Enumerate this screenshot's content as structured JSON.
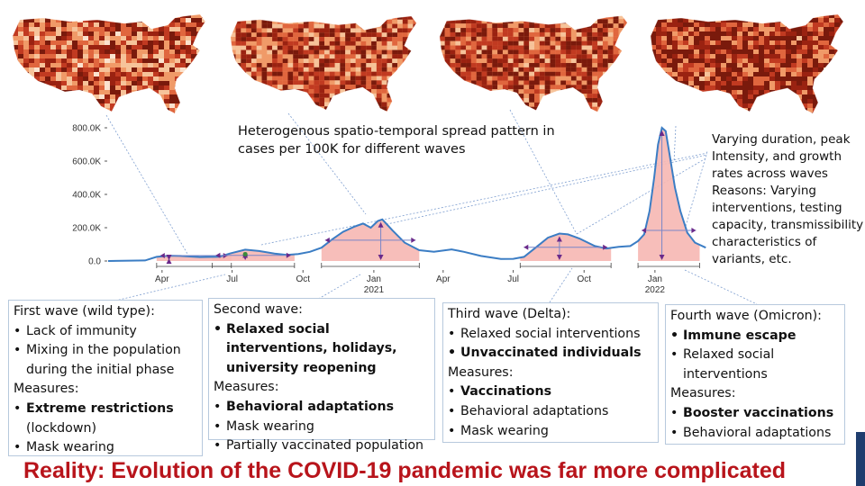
{
  "maps": [
    "wave-1-map",
    "wave-2-map",
    "wave-3-map",
    "wave-4-map"
  ],
  "heading": "Heterogenous spatio-temporal spread pattern in cases per 100K for different waves",
  "side_note": "Varying duration, peak Intensity, and growth rates across waves Reasons: Varying interventions, testing capacity, transmissibility characteristics of variants, etc.",
  "boxes": [
    {
      "title": "First wave (wild type):",
      "items": [
        {
          "text": "Lack of immunity",
          "bold": false
        },
        {
          "text": "Mixing in the population during the initial phase",
          "bold": false
        }
      ],
      "measures_label": "Measures:",
      "measures": [
        {
          "bold_text": "Extreme restrictions",
          "text": " (lockdown)"
        },
        {
          "bold_text": "",
          "text": "Mask wearing"
        }
      ]
    },
    {
      "title": "Second wave:",
      "items": [
        {
          "text": "Relaxed social interventions, holidays, university reopening",
          "bold": true
        }
      ],
      "measures_label": "Measures:",
      "measures": [
        {
          "bold_text": "Behavioral adaptations",
          "text": ""
        },
        {
          "bold_text": "",
          "text": "Mask wearing"
        },
        {
          "bold_text": "",
          "text": "Partially vaccinated population"
        }
      ]
    },
    {
      "title": "Third wave (Delta):",
      "items": [
        {
          "text": "Relaxed social interventions",
          "bold": false
        },
        {
          "text": "Unvaccinated individuals",
          "bold": true
        }
      ],
      "measures_label": "Measures:",
      "measures": [
        {
          "bold_text": "Vaccinations",
          "text": ""
        },
        {
          "bold_text": "",
          "text": "Behavioral adaptations"
        },
        {
          "bold_text": "",
          "text": "Mask wearing"
        }
      ]
    },
    {
      "title": "Fourth wave (Omicron):",
      "items": [
        {
          "text": "Immune escape",
          "bold": true
        },
        {
          "text": "Relaxed social interventions",
          "bold": false
        }
      ],
      "measures_label": "Measures:",
      "measures": [
        {
          "bold_text": "Booster vaccinations",
          "text": ""
        },
        {
          "bold_text": "",
          "text": "Behavioral adaptations"
        }
      ]
    }
  ],
  "footer": "Reality: Evolution of the COVID-19 pandemic was far more complicated",
  "colors": {
    "line": "#3b7dc4",
    "wave_fill": "#f6b7b3",
    "arrow": "#6b2a8a",
    "footer": "#b8141b",
    "map_dark": "#7a1a0c",
    "map_light": "#fbe3cf"
  },
  "chart_data": {
    "type": "line",
    "ylabel": "",
    "ylim": [
      0,
      850000
    ],
    "y_ticks": [
      {
        "value": 0,
        "label": "0.0"
      },
      {
        "value": 200000,
        "label": "200.0K"
      },
      {
        "value": 400000,
        "label": "400.0K"
      },
      {
        "value": 600000,
        "label": "600.0K"
      },
      {
        "value": 800000,
        "label": "800.0K"
      }
    ],
    "xlim": [
      "2020-01-22",
      "2022-03-10"
    ],
    "x_ticks": [
      {
        "date": "2020-04-01",
        "label": "Apr",
        "sub": ""
      },
      {
        "date": "2020-07-01",
        "label": "Jul",
        "sub": ""
      },
      {
        "date": "2020-10-01",
        "label": "Oct",
        "sub": ""
      },
      {
        "date": "2021-01-01",
        "label": "Jan",
        "sub": "2021"
      },
      {
        "date": "2021-04-01",
        "label": "Apr",
        "sub": ""
      },
      {
        "date": "2021-07-01",
        "label": "Jul",
        "sub": ""
      },
      {
        "date": "2021-10-01",
        "label": "Oct",
        "sub": ""
      },
      {
        "date": "2022-01-01",
        "label": "Jan",
        "sub": "2022"
      }
    ],
    "series": [
      {
        "name": "",
        "points": [
          [
            "2020-01-22",
            0
          ],
          [
            "2020-03-10",
            3000
          ],
          [
            "2020-03-25",
            25000
          ],
          [
            "2020-04-10",
            32000
          ],
          [
            "2020-04-25",
            30000
          ],
          [
            "2020-05-20",
            24000
          ],
          [
            "2020-06-15",
            26000
          ],
          [
            "2020-06-28",
            45000
          ],
          [
            "2020-07-18",
            68000
          ],
          [
            "2020-08-05",
            60000
          ],
          [
            "2020-08-25",
            45000
          ],
          [
            "2020-09-10",
            37000
          ],
          [
            "2020-09-25",
            42000
          ],
          [
            "2020-10-10",
            55000
          ],
          [
            "2020-10-25",
            80000
          ],
          [
            "2020-11-08",
            130000
          ],
          [
            "2020-11-22",
            175000
          ],
          [
            "2020-12-06",
            205000
          ],
          [
            "2020-12-18",
            225000
          ],
          [
            "2020-12-28",
            200000
          ],
          [
            "2021-01-06",
            240000
          ],
          [
            "2021-01-12",
            250000
          ],
          [
            "2021-01-25",
            185000
          ],
          [
            "2021-02-10",
            110000
          ],
          [
            "2021-03-01",
            65000
          ],
          [
            "2021-03-20",
            55000
          ],
          [
            "2021-04-12",
            70000
          ],
          [
            "2021-04-28",
            55000
          ],
          [
            "2021-05-20",
            30000
          ],
          [
            "2021-06-15",
            12000
          ],
          [
            "2021-07-01",
            13000
          ],
          [
            "2021-07-15",
            25000
          ],
          [
            "2021-07-30",
            80000
          ],
          [
            "2021-08-15",
            140000
          ],
          [
            "2021-08-30",
            165000
          ],
          [
            "2021-09-10",
            160000
          ],
          [
            "2021-09-25",
            135000
          ],
          [
            "2021-10-15",
            90000
          ],
          [
            "2021-10-30",
            75000
          ],
          [
            "2021-11-15",
            85000
          ],
          [
            "2021-11-30",
            90000
          ],
          [
            "2021-12-10",
            120000
          ],
          [
            "2021-12-18",
            160000
          ],
          [
            "2021-12-25",
            300000
          ],
          [
            "2021-12-31",
            500000
          ],
          [
            "2022-01-05",
            700000
          ],
          [
            "2022-01-10",
            800000
          ],
          [
            "2022-01-15",
            780000
          ],
          [
            "2022-01-20",
            640000
          ],
          [
            "2022-01-27",
            440000
          ],
          [
            "2022-02-03",
            300000
          ],
          [
            "2022-02-12",
            170000
          ],
          [
            "2022-02-22",
            110000
          ],
          [
            "2022-03-08",
            80000
          ]
        ]
      }
    ],
    "waves": [
      {
        "start": "2020-03-25",
        "end": "2020-06-30",
        "peak": "2020-04-10",
        "height": 32000
      },
      {
        "start": "2020-06-05",
        "end": "2020-09-20",
        "peak": "2020-07-18",
        "height": 68000
      },
      {
        "start": "2020-10-25",
        "end": "2021-03-01",
        "peak": "2021-01-10",
        "height": 250000
      },
      {
        "start": "2021-07-10",
        "end": "2021-11-05",
        "peak": "2021-08-30",
        "height": 165000
      },
      {
        "start": "2021-12-10",
        "end": "2022-02-28",
        "peak": "2022-01-10",
        "height": 800000
      }
    ]
  }
}
